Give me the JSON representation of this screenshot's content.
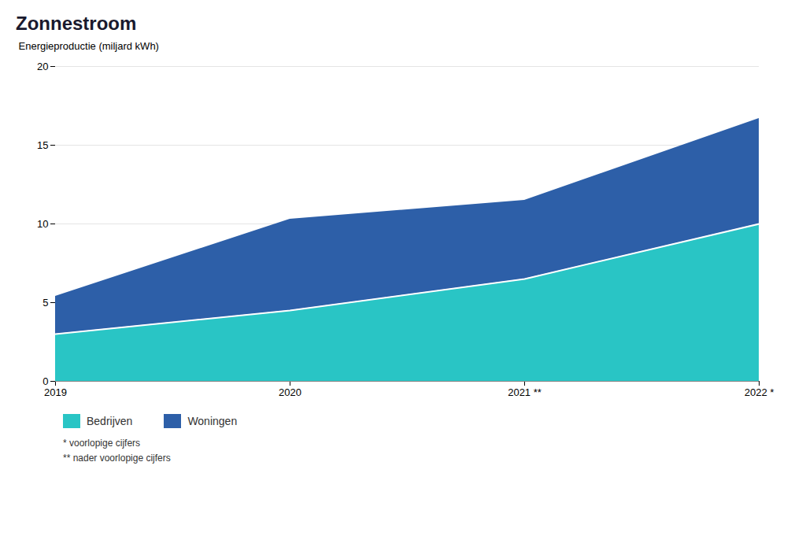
{
  "chart_data": {
    "type": "area",
    "title": "Zonnestroom",
    "ylabel": "Energieproductie (miljard kWh)",
    "x": [
      2019,
      2020,
      2021,
      2022
    ],
    "series": [
      {
        "name": "Bedrijven",
        "color": "#29C5C5",
        "values": [
          3.0,
          4.5,
          6.5,
          10.0
        ]
      },
      {
        "name": "Woningen",
        "color": "#2D5FA8",
        "values": [
          2.4,
          5.8,
          5.0,
          6.7
        ]
      }
    ],
    "stacked": true,
    "xlim": [
      2019,
      2022
    ],
    "xticks": [
      2019,
      2020,
      {
        "value": 2021,
        "label": "2021 **"
      },
      {
        "value": 2022,
        "label": "2022 *"
      }
    ],
    "ylim": [
      0,
      20
    ],
    "yticks": [
      0,
      5,
      10,
      15,
      20
    ],
    "grid": true,
    "annotations": [
      "* voorlopige cijfers",
      "** nader voorlopige cijfers"
    ]
  }
}
